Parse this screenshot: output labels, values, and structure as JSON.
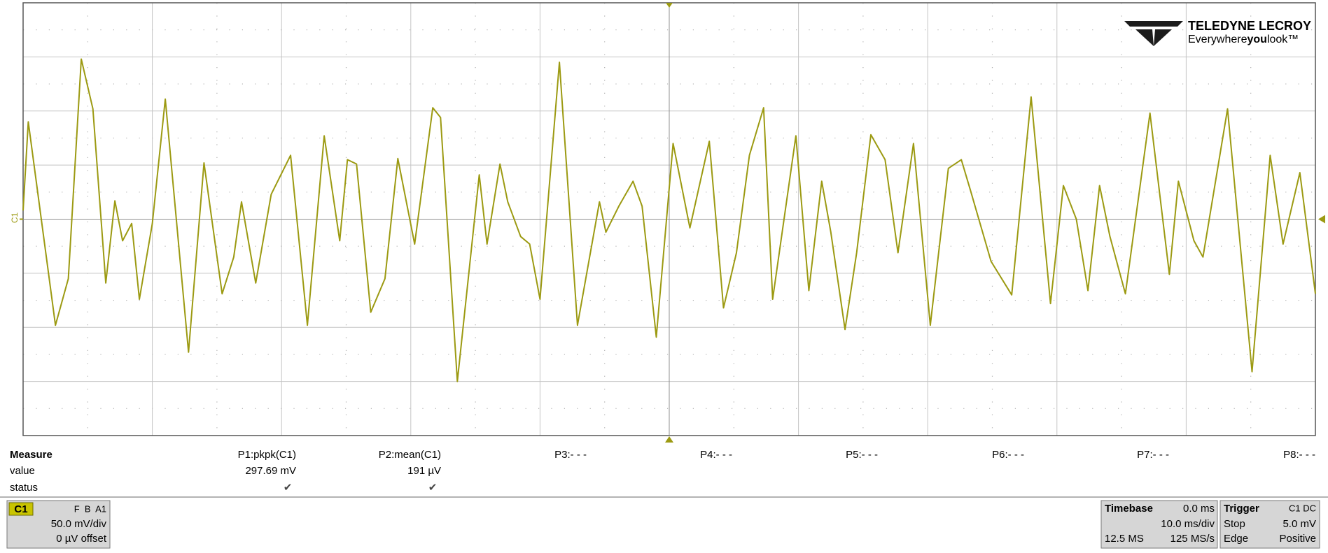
{
  "chart_data": {
    "type": "line",
    "xlim": [
      -50,
      50
    ],
    "xticks": [
      -50,
      -40,
      -30,
      -20,
      -10,
      0,
      10,
      20,
      30,
      40,
      50
    ],
    "ylim": [
      -200,
      200
    ],
    "yticks": [
      -200,
      -150,
      -100,
      -50,
      0,
      50,
      100,
      150,
      200
    ],
    "grid": true,
    "x": [
      -50.0,
      -49.6,
      -47.5,
      -46.5,
      -45.5,
      -44.6,
      -43.6,
      -42.9,
      -42.3,
      -41.6,
      -41.0,
      -40.0,
      -39.0,
      -37.2,
      -36.0,
      -34.6,
      -33.7,
      -33.1,
      -32.0,
      -30.8,
      -29.3,
      -28.0,
      -26.7,
      -25.5,
      -24.9,
      -24.2,
      -23.1,
      -22.0,
      -21.0,
      -19.7,
      -18.3,
      -17.7,
      -16.4,
      -14.7,
      -14.1,
      -13.1,
      -12.5,
      -11.5,
      -10.8,
      -10.0,
      -8.5,
      -7.1,
      -5.4,
      -4.9,
      -3.9,
      -2.8,
      -2.1,
      -1.0,
      0.3,
      1.6,
      3.1,
      4.2,
      5.2,
      6.2,
      7.3,
      8.0,
      9.8,
      10.8,
      11.8,
      12.5,
      13.6,
      14.5,
      15.6,
      16.7,
      17.7,
      18.9,
      20.2,
      21.6,
      22.6,
      23.3,
      24.9,
      26.5,
      28.0,
      29.5,
      30.5,
      31.5,
      32.4,
      33.3,
      34.1,
      35.3,
      37.2,
      38.7,
      39.4,
      40.6,
      41.3,
      43.2,
      45.1,
      46.5,
      47.5,
      48.8,
      50.0
    ],
    "series": [
      {
        "name": "C1",
        "color": "#9c9a12",
        "values": [
          8,
          90,
          -98,
          -55,
          148,
          102,
          -59,
          17,
          -20,
          -4,
          -74,
          -4,
          111,
          -123,
          52,
          -69,
          -35,
          16,
          -59,
          23,
          59,
          -98,
          77,
          -20,
          55,
          51,
          -86,
          -55,
          56,
          -23,
          103,
          94,
          -150,
          41,
          -23,
          51,
          16,
          -16,
          -23,
          -74,
          145,
          -98,
          16,
          -12,
          12,
          35,
          12,
          -109,
          70,
          -8,
          72,
          -82,
          -31,
          59,
          103,
          -74,
          77,
          -66,
          35,
          -12,
          -102,
          -31,
          78,
          55,
          -31,
          70,
          -98,
          47,
          55,
          27,
          -39,
          -70,
          113,
          -78,
          31,
          0,
          -66,
          31,
          -16,
          -69,
          98,
          -51,
          35,
          -20,
          -35,
          102,
          -141,
          59,
          -23,
          43,
          -69
        ]
      }
    ]
  },
  "logo": {
    "brand": "TELEDYNE LECROY",
    "tagline": [
      "Everywhere",
      "you",
      "look™"
    ]
  },
  "measure": {
    "title": "Measure",
    "rows": [
      "value",
      "status"
    ],
    "params": [
      {
        "name": "P1:pkpk(C1)",
        "value": "297.69 mV",
        "status": "✔"
      },
      {
        "name": "P2:mean(C1)",
        "value": "191 µV",
        "status": "✔"
      },
      {
        "name": "P3:- - -"
      },
      {
        "name": "P4:- - -"
      },
      {
        "name": "P5:- - -"
      },
      {
        "name": "P6:- - -"
      },
      {
        "name": "P7:- - -"
      },
      {
        "name": "P8:- - -"
      }
    ]
  },
  "channel": {
    "label": "C1",
    "flags": "F  B  A1",
    "scale": "50.0 mV/div",
    "offset": "0 µV offset"
  },
  "timebase": {
    "title": "Timebase",
    "delay": "0.0 ms",
    "scale": "10.0 ms/div",
    "samples": "12.5 MS",
    "rate": "125 MS/s"
  },
  "trigger": {
    "title": "Trigger",
    "source": "C1 DC",
    "mode": "Stop",
    "level": "5.0 mV",
    "type": "Edge",
    "slope": "Positive"
  }
}
